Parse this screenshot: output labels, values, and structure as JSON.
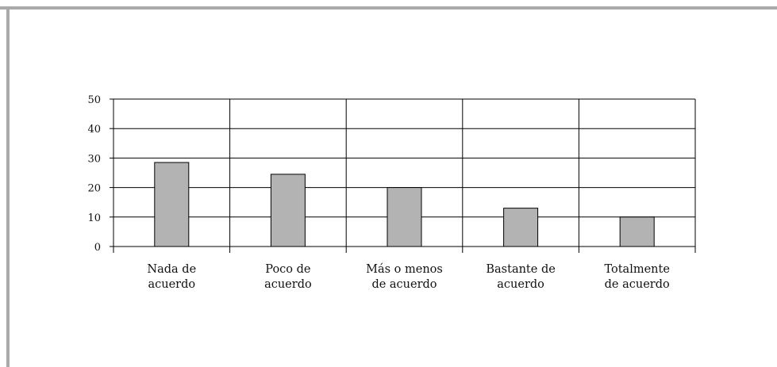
{
  "chart_data": {
    "type": "bar",
    "title": "",
    "xlabel": "",
    "ylabel": "",
    "categories": [
      [
        "Nada de",
        "acuerdo"
      ],
      [
        "Poco de",
        "acuerdo"
      ],
      [
        "Más o menos",
        "de acuerdo"
      ],
      [
        "Bastante de",
        "acuerdo"
      ],
      [
        "Totalmente",
        "de acuerdo"
      ]
    ],
    "values": [
      28.5,
      24.5,
      20,
      13,
      10
    ],
    "ylim": [
      0,
      50
    ],
    "yticks": [
      0,
      10,
      20,
      30,
      40,
      50
    ],
    "grid": true,
    "legend": "none",
    "bar_color": "#b3b3b3",
    "bar_edge_color": "#000000"
  }
}
